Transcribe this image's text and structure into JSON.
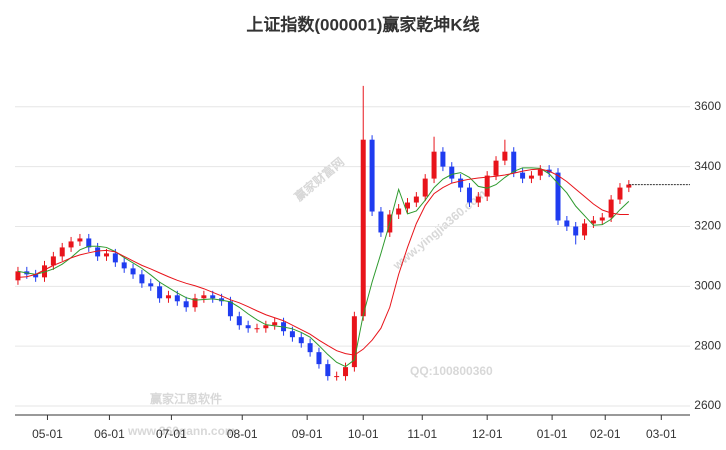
{
  "chart_data": {
    "type": "candlestick",
    "title": "上证指数(000001)赢家乾坤K线",
    "watermarks": [
      "赢家财富网",
      "www.yingjia360.com",
      "赢家江恩软件",
      "QQ:100800360",
      "www.360gann.com"
    ],
    "up_color": "#e8141b",
    "down_color": "#1f3cf0",
    "x": [
      0,
      3,
      6,
      9,
      12,
      15,
      18,
      21,
      24,
      27,
      30,
      33,
      36,
      39,
      42,
      45,
      48,
      51,
      54,
      57,
      60,
      63,
      66,
      69,
      72,
      75,
      78,
      81,
      84,
      87,
      90,
      93,
      96,
      99,
      102,
      105,
      108,
      111,
      114,
      117,
      120,
      123,
      126,
      129,
      132,
      135,
      138,
      141,
      144,
      147,
      150,
      153,
      156,
      159,
      162,
      165,
      168,
      171,
      174,
      177,
      180,
      183,
      186,
      189,
      192,
      195,
      198,
      201,
      204,
      207
    ],
    "open": [
      3020,
      3050,
      3040,
      3030,
      3070,
      3100,
      3130,
      3150,
      3160,
      3130,
      3100,
      3110,
      3080,
      3060,
      3040,
      3010,
      3000,
      2960,
      2970,
      2950,
      2930,
      2960,
      2970,
      2960,
      2950,
      2900,
      2870,
      2860,
      2860,
      2870,
      2880,
      2850,
      2830,
      2810,
      2780,
      2740,
      2700,
      2700,
      2730,
      2900,
      3490,
      3250,
      3180,
      3240,
      3260,
      3280,
      3300,
      3360,
      3450,
      3400,
      3360,
      3330,
      3280,
      3300,
      3370,
      3420,
      3450,
      3380,
      3360,
      3370,
      3390,
      3380,
      3220,
      3200,
      3170,
      3210,
      3220,
      3230,
      3290,
      3330
    ],
    "high": [
      3065,
      3065,
      3055,
      3085,
      3115,
      3145,
      3165,
      3175,
      3175,
      3145,
      3125,
      3125,
      3095,
      3075,
      3055,
      3025,
      3015,
      2985,
      2985,
      2965,
      2975,
      2985,
      2985,
      2975,
      2965,
      2915,
      2885,
      2875,
      2885,
      2895,
      2895,
      2865,
      2845,
      2825,
      2795,
      2755,
      2715,
      2745,
      2915,
      3670,
      3505,
      3265,
      3255,
      3275,
      3295,
      3315,
      3375,
      3500,
      3465,
      3415,
      3375,
      3345,
      3315,
      3385,
      3435,
      3490,
      3465,
      3395,
      3385,
      3405,
      3405,
      3395,
      3235,
      3215,
      3225,
      3235,
      3245,
      3305,
      3345,
      3355
    ],
    "low": [
      3005,
      3025,
      3015,
      3015,
      3055,
      3085,
      3115,
      3135,
      3115,
      3085,
      3085,
      3065,
      3045,
      3025,
      2995,
      2985,
      2945,
      2945,
      2935,
      2915,
      2915,
      2945,
      2945,
      2935,
      2885,
      2855,
      2845,
      2845,
      2845,
      2855,
      2835,
      2815,
      2795,
      2765,
      2725,
      2685,
      2685,
      2685,
      2715,
      2885,
      3235,
      3165,
      3165,
      3225,
      3245,
      3265,
      3285,
      3345,
      3385,
      3345,
      3315,
      3265,
      3265,
      3285,
      3355,
      3405,
      3365,
      3345,
      3345,
      3355,
      3365,
      3205,
      3185,
      3140,
      3155,
      3195,
      3205,
      3215,
      3275,
      3315
    ],
    "close": [
      3050,
      3040,
      3030,
      3070,
      3100,
      3130,
      3150,
      3160,
      3130,
      3100,
      3110,
      3080,
      3060,
      3040,
      3010,
      3000,
      2960,
      2970,
      2950,
      2930,
      2960,
      2970,
      2960,
      2950,
      2900,
      2870,
      2860,
      2860,
      2870,
      2880,
      2850,
      2830,
      2810,
      2780,
      2740,
      2700,
      2700,
      2730,
      2900,
      3490,
      3250,
      3180,
      3240,
      3260,
      3280,
      3300,
      3360,
      3450,
      3400,
      3360,
      3330,
      3280,
      3300,
      3370,
      3420,
      3450,
      3380,
      3360,
      3370,
      3390,
      3380,
      3220,
      3200,
      3170,
      3210,
      3220,
      3230,
      3290,
      3330,
      3340
    ],
    "lines": [
      {
        "color": "#2e9a2e",
        "values": [
          3050,
          3045,
          3040,
          3048,
          3058,
          3074,
          3096,
          3122,
          3134,
          3134,
          3130,
          3116,
          3096,
          3078,
          3060,
          3038,
          3014,
          2996,
          2978,
          2962,
          2954,
          2956,
          2958,
          2954,
          2948,
          2930,
          2908,
          2888,
          2872,
          2868,
          2864,
          2858,
          2846,
          2830,
          2802,
          2772,
          2746,
          2732,
          2754,
          2904,
          3014,
          3110,
          3212,
          3324,
          3242,
          3252,
          3288,
          3330,
          3358,
          3374,
          3380,
          3364,
          3334,
          3328,
          3340,
          3364,
          3384,
          3396,
          3396,
          3394,
          3376,
          3344,
          3312,
          3268,
          3236,
          3204,
          3206,
          3224,
          3256,
          3284
        ]
      },
      {
        "color": "#e8141b",
        "values": [
          3030,
          3032,
          3040,
          3055,
          3070,
          3082,
          3095,
          3105,
          3112,
          3118,
          3120,
          3115,
          3100,
          3085,
          3070,
          3058,
          3045,
          3032,
          3020,
          3010,
          3002,
          2992,
          2980,
          2968,
          2955,
          2945,
          2932,
          2918,
          2905,
          2895,
          2885,
          2870,
          2855,
          2840,
          2820,
          2802,
          2785,
          2775,
          2770,
          2790,
          2820,
          2860,
          2930,
          3040,
          3130,
          3210,
          3270,
          3310,
          3330,
          3345,
          3352,
          3358,
          3362,
          3365,
          3368,
          3372,
          3378,
          3385,
          3390,
          3392,
          3385,
          3370,
          3350,
          3325,
          3300,
          3275,
          3255,
          3245,
          3240,
          3240
        ]
      }
    ],
    "xlim": [
      -1,
      224
    ],
    "xticks": [
      {
        "value": 10,
        "label": "05-01"
      },
      {
        "value": 31,
        "label": "06-01"
      },
      {
        "value": 52,
        "label": "07-01"
      },
      {
        "value": 76,
        "label": "08-01"
      },
      {
        "value": 98,
        "label": "09-01"
      },
      {
        "value": 117,
        "label": "10-01"
      },
      {
        "value": 137,
        "label": "11-01"
      },
      {
        "value": 159,
        "label": "12-01"
      },
      {
        "value": 181,
        "label": "01-01"
      },
      {
        "value": 199,
        "label": "02-01"
      },
      {
        "value": 218,
        "label": "03-01"
      }
    ],
    "ylim": [
      2570,
      3890
    ],
    "yticks": [
      2600,
      2800,
      3000,
      3200,
      3400,
      3600
    ],
    "grid": true
  }
}
